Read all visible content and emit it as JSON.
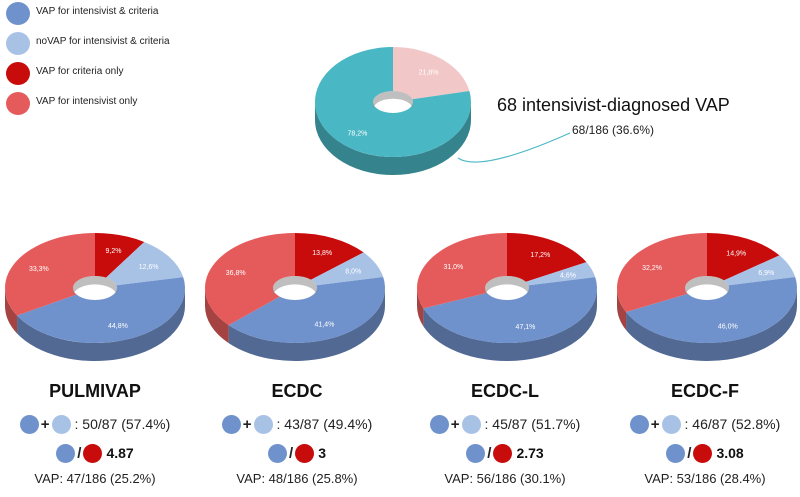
{
  "colors": {
    "vap_both": "#7092cc",
    "novap_both": "#a8c2e6",
    "vap_criteria_only": "#c80b0b",
    "vap_intensivist_only": "#e55b5b",
    "top_main": "#4ab8c4",
    "top_minor": "#f2c7c7"
  },
  "legend": [
    {
      "label": "VAP for intensivist & criteria",
      "color_key": "vap_both",
      "icon": "circle-icon"
    },
    {
      "label": "noVAP for intensivist & criteria",
      "color_key": "novap_both",
      "icon": "circle-icon"
    },
    {
      "label": "VAP for criteria only",
      "color_key": "vap_criteria_only",
      "icon": "circle-icon"
    },
    {
      "label": "VAP for intensivist only",
      "color_key": "vap_intensivist_only",
      "icon": "circle-icon"
    }
  ],
  "top_chart": {
    "title": "68 intensivist-diagnosed VAP",
    "subtitle": "68/186 (36.6%)"
  },
  "chart_data": [
    {
      "type": "pie",
      "title": "68 intensivist-diagnosed VAP",
      "slices": [
        {
          "label": "21,8%",
          "value": 21.8,
          "color_key": "top_minor"
        },
        {
          "label": "78,2%",
          "value": 78.2,
          "color_key": "top_main"
        }
      ]
    },
    {
      "type": "pie",
      "title": "PULMIVAP",
      "slices": [
        {
          "label": "9,2%",
          "value": 9.2,
          "color_key": "vap_criteria_only"
        },
        {
          "label": "12,6%",
          "value": 12.6,
          "color_key": "novap_both"
        },
        {
          "label": "44,8%",
          "value": 44.8,
          "color_key": "vap_both"
        },
        {
          "label": "33,3%",
          "value": 33.3,
          "color_key": "vap_intensivist_only"
        }
      ]
    },
    {
      "type": "pie",
      "title": "ECDC",
      "slices": [
        {
          "label": "13,8%",
          "value": 13.8,
          "color_key": "vap_criteria_only"
        },
        {
          "label": "8,0%",
          "value": 8.0,
          "color_key": "novap_both"
        },
        {
          "label": "41,4%",
          "value": 41.4,
          "color_key": "vap_both"
        },
        {
          "label": "36,8%",
          "value": 36.8,
          "color_key": "vap_intensivist_only"
        }
      ]
    },
    {
      "type": "pie",
      "title": "ECDC-L",
      "slices": [
        {
          "label": "17,2%",
          "value": 17.2,
          "color_key": "vap_criteria_only"
        },
        {
          "label": "4,6%",
          "value": 4.6,
          "color_key": "novap_both"
        },
        {
          "label": "47,1%",
          "value": 47.1,
          "color_key": "vap_both"
        },
        {
          "label": "31,0%",
          "value": 31.0,
          "color_key": "vap_intensivist_only"
        }
      ]
    },
    {
      "type": "pie",
      "title": "ECDC-F",
      "slices": [
        {
          "label": "14,9%",
          "value": 14.9,
          "color_key": "vap_criteria_only"
        },
        {
          "label": "6,9%",
          "value": 6.9,
          "color_key": "novap_both"
        },
        {
          "label": "46,0%",
          "value": 46.0,
          "color_key": "vap_both"
        },
        {
          "label": "32,2%",
          "value": 32.2,
          "color_key": "vap_intensivist_only"
        }
      ]
    }
  ],
  "panels": [
    {
      "name": "PULMIVAP",
      "agreement": ": 50/87 (57.4%)",
      "ratio": "4.87",
      "vap": "VAP: 47/186 (25.2%)"
    },
    {
      "name": "ECDC",
      "agreement": ": 43/87 (49.4%)",
      "ratio": "3",
      "vap": "VAP: 48/186 (25.8%)"
    },
    {
      "name": "ECDC-L",
      "agreement": ": 45/87 (51.7%)",
      "ratio": "2.73",
      "vap": "VAP: 56/186 (30.1%)"
    },
    {
      "name": "ECDC-F",
      "agreement": ": 46/87 (52.8%)",
      "ratio": "3.08",
      "vap": "VAP: 53/186 (28.4%)"
    }
  ],
  "operators": {
    "plus": "+",
    "divide": "/"
  }
}
